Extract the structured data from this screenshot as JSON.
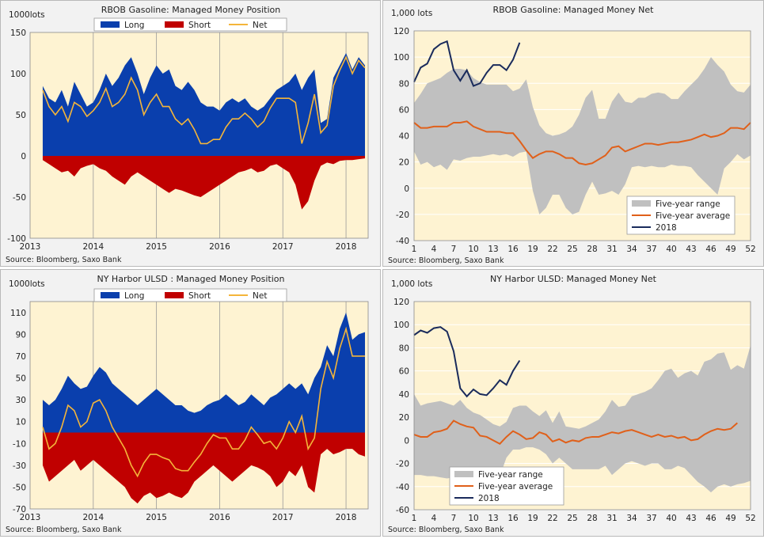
{
  "colors": {
    "plot_bg": "#fef3d2",
    "long": "#0a3fad",
    "short": "#c00000",
    "net": "#f4b53a",
    "range": "#c0c0c0",
    "avg": "#e0601a",
    "y2018": "#1a2b5c"
  },
  "chart_data": [
    {
      "type": "area",
      "id": "rbob_pos",
      "title": "RBOB Gasoline: Managed Money Position",
      "unit": "1000lots",
      "source": "Source: Bloomberg, Saxo Bank",
      "ylim": [
        -100,
        150
      ],
      "yticks": [
        -100,
        -50,
        0,
        50,
        100,
        150
      ],
      "xlim": [
        2013,
        2018.35
      ],
      "xticks": [
        {
          "v": 2013,
          "label": "2013"
        },
        {
          "v": 2014,
          "label": "2014"
        },
        {
          "v": 2015,
          "label": "2015"
        },
        {
          "v": 2016,
          "label": "2016"
        },
        {
          "v": 2017,
          "label": "2017"
        },
        {
          "v": 2018,
          "label": "2018"
        }
      ],
      "legend": [
        "Long",
        "Short",
        "Net"
      ],
      "x": [
        2013.2,
        2013.3,
        2013.4,
        2013.5,
        2013.6,
        2013.7,
        2013.8,
        2013.9,
        2014.0,
        2014.1,
        2014.2,
        2014.3,
        2014.4,
        2014.5,
        2014.6,
        2014.7,
        2014.8,
        2014.9,
        2015.0,
        2015.1,
        2015.2,
        2015.3,
        2015.4,
        2015.5,
        2015.6,
        2015.7,
        2015.8,
        2015.9,
        2016.0,
        2016.1,
        2016.2,
        2016.3,
        2016.4,
        2016.5,
        2016.6,
        2016.7,
        2016.8,
        2016.9,
        2017.0,
        2017.1,
        2017.2,
        2017.3,
        2017.4,
        2017.5,
        2017.6,
        2017.7,
        2017.8,
        2017.9,
        2018.0,
        2018.1,
        2018.2,
        2018.3
      ],
      "long": [
        85,
        70,
        65,
        80,
        60,
        90,
        75,
        60,
        65,
        80,
        100,
        85,
        95,
        110,
        120,
        100,
        75,
        95,
        110,
        100,
        105,
        85,
        80,
        90,
        80,
        65,
        60,
        60,
        55,
        65,
        70,
        65,
        70,
        60,
        55,
        60,
        70,
        80,
        85,
        90,
        100,
        80,
        95,
        105,
        40,
        45,
        95,
        110,
        125,
        105,
        120,
        110
      ],
      "short": [
        -5,
        -10,
        -15,
        -20,
        -18,
        -25,
        -15,
        -12,
        -10,
        -15,
        -18,
        -25,
        -30,
        -35,
        -25,
        -20,
        -25,
        -30,
        -35,
        -40,
        -45,
        -40,
        -42,
        -45,
        -48,
        -50,
        -45,
        -40,
        -35,
        -30,
        -25,
        -20,
        -18,
        -15,
        -20,
        -18,
        -12,
        -10,
        -15,
        -20,
        -35,
        -65,
        -55,
        -30,
        -12,
        -8,
        -10,
        -6,
        -5,
        -5,
        -4,
        -3
      ],
      "net": [
        80,
        60,
        50,
        60,
        42,
        65,
        60,
        48,
        55,
        65,
        82,
        60,
        65,
        75,
        95,
        80,
        50,
        65,
        75,
        60,
        60,
        45,
        38,
        45,
        32,
        15,
        15,
        20,
        20,
        35,
        45,
        45,
        52,
        45,
        35,
        42,
        58,
        70,
        70,
        70,
        65,
        15,
        40,
        75,
        28,
        37,
        85,
        104,
        120,
        100,
        116,
        107
      ]
    },
    {
      "type": "line",
      "id": "rbob_net",
      "title": "RBOB Gasoline: Managed Money Net",
      "unit": "1,000 lots",
      "source": "Source: Bloomberg, Saxo Bank",
      "ylim": [
        -40,
        120
      ],
      "yticks": [
        -40,
        -20,
        0,
        20,
        40,
        60,
        80,
        100,
        120
      ],
      "xlim": [
        1,
        52
      ],
      "xticks": [
        1,
        4,
        7,
        10,
        13,
        16,
        19,
        22,
        25,
        28,
        31,
        34,
        37,
        40,
        43,
        46,
        49,
        52
      ],
      "legend": [
        "Five-year range",
        "Five-year average",
        "2018"
      ],
      "weeks": [
        1,
        2,
        3,
        4,
        5,
        6,
        7,
        8,
        9,
        10,
        11,
        12,
        13,
        14,
        15,
        16,
        17,
        18,
        19,
        20,
        21,
        22,
        23,
        24,
        25,
        26,
        27,
        28,
        29,
        30,
        31,
        32,
        33,
        34,
        35,
        36,
        37,
        38,
        39,
        40,
        41,
        42,
        43,
        44,
        45,
        46,
        47,
        48,
        49,
        50,
        51,
        52
      ],
      "range_max": [
        65,
        72,
        80,
        82,
        84,
        88,
        91,
        91,
        90,
        84,
        81,
        79,
        79,
        79,
        79,
        74,
        76,
        83,
        62,
        48,
        42,
        40,
        41,
        43,
        47,
        56,
        69,
        75,
        53,
        53,
        66,
        73,
        66,
        65,
        69,
        69,
        72,
        73,
        72,
        68,
        68,
        74,
        79,
        84,
        91,
        100,
        94,
        89,
        79,
        74,
        73,
        79
      ],
      "range_min": [
        28,
        18,
        20,
        16,
        18,
        14,
        22,
        21,
        23,
        24,
        24,
        25,
        26,
        25,
        26,
        24,
        27,
        28,
        -2,
        -20,
        -15,
        -5,
        -5,
        -15,
        -20,
        -18,
        -5,
        5,
        -5,
        -4,
        -2,
        -5,
        3,
        16,
        17,
        16,
        17,
        16,
        16,
        18,
        17,
        17,
        16,
        10,
        5,
        0,
        -5,
        15,
        20,
        26,
        22,
        25
      ],
      "average": [
        50,
        46,
        46,
        47,
        47,
        47,
        50,
        50,
        51,
        47,
        45,
        43,
        43,
        43,
        42,
        42,
        36,
        29,
        23,
        26,
        28,
        28,
        26,
        23,
        23,
        19,
        18,
        19,
        22,
        25,
        31,
        32,
        28,
        30,
        32,
        34,
        34,
        33,
        34,
        35,
        35,
        36,
        37,
        39,
        41,
        39,
        40,
        42,
        46,
        46,
        45,
        50
      ],
      "y2018": [
        81,
        92,
        95,
        106,
        110,
        112,
        90,
        82,
        90,
        78,
        80,
        88,
        94,
        94,
        90,
        98,
        111
      ]
    },
    {
      "type": "area",
      "id": "ulsd_pos",
      "title": "NY Harbor ULSD : Managed Money Position",
      "unit": "1000lots",
      "source": "Source: Bloomberg, Saxo Bank",
      "ylim": [
        -70,
        120
      ],
      "yticks": [
        -70,
        -50,
        -30,
        -10,
        10,
        30,
        50,
        70,
        90,
        110
      ],
      "xlim": [
        2013,
        2018.35
      ],
      "xticks": [
        {
          "v": 2013,
          "label": "2013"
        },
        {
          "v": 2014,
          "label": "2014"
        },
        {
          "v": 2015,
          "label": "2015"
        },
        {
          "v": 2016,
          "label": "2016"
        },
        {
          "v": 2017,
          "label": "2017"
        },
        {
          "v": 2018,
          "label": "2018"
        }
      ],
      "legend": [
        "Long",
        "Short",
        "Net"
      ],
      "x": [
        2013.2,
        2013.3,
        2013.4,
        2013.5,
        2013.6,
        2013.7,
        2013.8,
        2013.9,
        2014.0,
        2014.1,
        2014.2,
        2014.3,
        2014.4,
        2014.5,
        2014.6,
        2014.7,
        2014.8,
        2014.9,
        2015.0,
        2015.1,
        2015.2,
        2015.3,
        2015.4,
        2015.5,
        2015.6,
        2015.7,
        2015.8,
        2015.9,
        2016.0,
        2016.1,
        2016.2,
        2016.3,
        2016.4,
        2016.5,
        2016.6,
        2016.7,
        2016.8,
        2016.9,
        2017.0,
        2017.1,
        2017.2,
        2017.3,
        2017.4,
        2017.5,
        2017.6,
        2017.7,
        2017.8,
        2017.9,
        2018.0,
        2018.1,
        2018.2,
        2018.3
      ],
      "long": [
        30,
        25,
        30,
        40,
        52,
        45,
        40,
        42,
        52,
        60,
        55,
        45,
        40,
        35,
        30,
        25,
        30,
        35,
        40,
        35,
        30,
        25,
        25,
        20,
        18,
        20,
        25,
        28,
        30,
        35,
        30,
        25,
        28,
        35,
        30,
        25,
        32,
        35,
        40,
        45,
        40,
        45,
        35,
        50,
        60,
        80,
        70,
        95,
        110,
        85,
        90,
        92
      ],
      "short": [
        -30,
        -45,
        -40,
        -35,
        -30,
        -25,
        -35,
        -30,
        -25,
        -30,
        -35,
        -40,
        -45,
        -50,
        -60,
        -65,
        -58,
        -55,
        -60,
        -58,
        -55,
        -58,
        -60,
        -55,
        -45,
        -40,
        -35,
        -30,
        -35,
        -40,
        -45,
        -40,
        -35,
        -30,
        -32,
        -35,
        -40,
        -50,
        -45,
        -35,
        -40,
        -30,
        -50,
        -55,
        -20,
        -15,
        -20,
        -18,
        -15,
        -15,
        -20,
        -22
      ],
      "net": [
        5,
        -15,
        -10,
        5,
        25,
        20,
        5,
        10,
        27,
        30,
        20,
        5,
        -5,
        -15,
        -30,
        -40,
        -28,
        -20,
        -20,
        -23,
        -25,
        -33,
        -35,
        -35,
        -27,
        -20,
        -10,
        -2,
        -5,
        -5,
        -15,
        -15,
        -7,
        5,
        -2,
        -10,
        -8,
        -15,
        -5,
        10,
        0,
        15,
        -15,
        -5,
        40,
        65,
        50,
        77,
        95,
        70,
        70,
        70
      ]
    },
    {
      "type": "line",
      "id": "ulsd_net",
      "title": "NY Harbor ULSD: Managed Money Net",
      "unit": "1,000 lots",
      "source": "Source: Bloomberg, Saxo Bank",
      "ylim": [
        -60,
        120
      ],
      "yticks": [
        -60,
        -40,
        -20,
        0,
        20,
        40,
        60,
        80,
        100,
        120
      ],
      "xlim": [
        1,
        52
      ],
      "xticks": [
        1,
        4,
        7,
        10,
        13,
        16,
        19,
        22,
        25,
        28,
        31,
        34,
        37,
        40,
        43,
        46,
        49,
        52
      ],
      "legend": [
        "Five-year range",
        "Five-year average",
        "2018"
      ],
      "weeks": [
        1,
        2,
        3,
        4,
        5,
        6,
        7,
        8,
        9,
        10,
        11,
        12,
        13,
        14,
        15,
        16,
        17,
        18,
        19,
        20,
        21,
        22,
        23,
        24,
        25,
        26,
        27,
        28,
        29,
        30,
        31,
        32,
        33,
        34,
        35,
        36,
        37,
        38,
        39,
        40,
        41,
        42,
        43,
        44,
        45,
        46,
        47,
        48,
        49,
        50,
        51,
        52
      ],
      "range_max": [
        40,
        30,
        32,
        33,
        34,
        32,
        30,
        35,
        28,
        24,
        22,
        18,
        14,
        12,
        16,
        28,
        30,
        30,
        25,
        21,
        26,
        15,
        25,
        12,
        11,
        10,
        12,
        15,
        18,
        25,
        35,
        29,
        30,
        38,
        40,
        42,
        45,
        52,
        60,
        62,
        54,
        58,
        60,
        56,
        68,
        70,
        75,
        76,
        61,
        65,
        62,
        82
      ],
      "range_min": [
        -30,
        -30,
        -31,
        -31,
        -32,
        -33,
        -32,
        -30,
        -29,
        -28,
        -24,
        -30,
        -25,
        -31,
        -15,
        -8,
        -8,
        -6,
        -6,
        -8,
        -12,
        -20,
        -15,
        -20,
        -25,
        -25,
        -25,
        -25,
        -25,
        -22,
        -30,
        -25,
        -20,
        -18,
        -20,
        -22,
        -20,
        -20,
        -25,
        -25,
        -22,
        -24,
        -30,
        -36,
        -40,
        -45,
        -40,
        -38,
        -40,
        -38,
        -37,
        -35
      ],
      "average": [
        5,
        3,
        3,
        7,
        8,
        10,
        17,
        14,
        12,
        11,
        4,
        3,
        0,
        -3,
        3,
        8,
        5,
        1,
        2,
        7,
        5,
        -1,
        1,
        -2,
        0,
        -1,
        2,
        3,
        3,
        5,
        7,
        6,
        8,
        9,
        7,
        5,
        3,
        5,
        3,
        4,
        2,
        3,
        0,
        1,
        5,
        8,
        10,
        9,
        10,
        15
      ],
      "y2018": [
        91,
        95,
        93,
        97,
        98,
        94,
        77,
        45,
        38,
        44,
        40,
        39,
        45,
        52,
        48,
        60,
        69
      ]
    }
  ]
}
